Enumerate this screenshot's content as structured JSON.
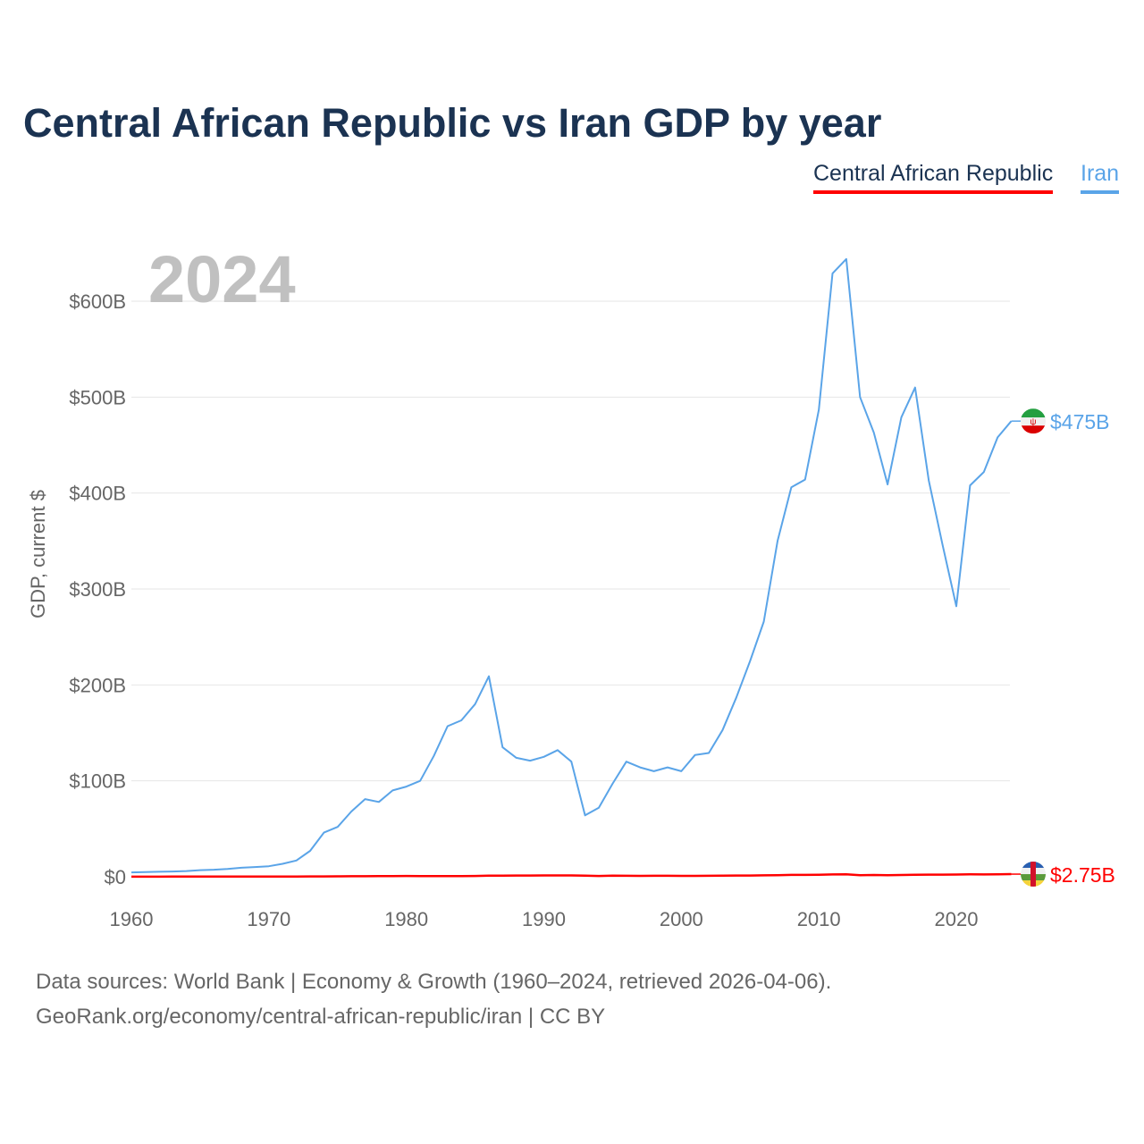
{
  "chart_data": {
    "type": "line",
    "title": "Central African Republic vs Iran GDP by year",
    "ylabel": "GDP, current $",
    "xlabel": "",
    "xlim": [
      1960,
      2024
    ],
    "ylim": [
      0,
      650
    ],
    "yunit": "billions USD",
    "x_ticks": [
      "1960",
      "1970",
      "1980",
      "1990",
      "2000",
      "2010",
      "2020"
    ],
    "y_ticks": [
      {
        "value": 0,
        "label": "$0"
      },
      {
        "value": 100,
        "label": "$100B"
      },
      {
        "value": 200,
        "label": "$200B"
      },
      {
        "value": 300,
        "label": "$300B"
      },
      {
        "value": 400,
        "label": "$400B"
      },
      {
        "value": 500,
        "label": "$500B"
      },
      {
        "value": 600,
        "label": "$600B"
      }
    ],
    "grid": true,
    "legend_position": "top-right",
    "current_year": "2024",
    "start_year": 1960,
    "series": [
      {
        "name": "Central African Republic",
        "color": "#ff0000",
        "end_label": "$2.75B",
        "flag": "central-african-republic",
        "values": [
          0.11,
          0.12,
          0.13,
          0.14,
          0.15,
          0.16,
          0.17,
          0.18,
          0.19,
          0.21,
          0.22,
          0.24,
          0.28,
          0.33,
          0.39,
          0.45,
          0.52,
          0.58,
          0.65,
          0.75,
          0.8,
          0.73,
          0.67,
          0.65,
          0.62,
          0.87,
          1.12,
          1.2,
          1.26,
          1.26,
          1.44,
          1.38,
          1.39,
          1.23,
          0.84,
          1.08,
          1.0,
          0.94,
          1.0,
          1.03,
          0.91,
          0.93,
          0.99,
          1.14,
          1.27,
          1.35,
          1.47,
          1.7,
          1.98,
          1.98,
          2.14,
          2.43,
          2.53,
          1.69,
          1.89,
          1.69,
          1.83,
          2.07,
          2.24,
          2.22,
          2.33,
          2.52,
          2.38,
          2.55,
          2.75
        ]
      },
      {
        "name": "Iran",
        "color": "#5aa4e8",
        "end_label": "$475B",
        "flag": "iran",
        "values": [
          4.6,
          4.8,
          5.2,
          5.5,
          6.0,
          6.9,
          7.4,
          8.2,
          9.4,
          10.2,
          11.0,
          13.5,
          17,
          27,
          46,
          52,
          68,
          81,
          78,
          90,
          94,
          100,
          126,
          157,
          163,
          180,
          209,
          135,
          124,
          121,
          125,
          132,
          120,
          64,
          72,
          97,
          120,
          114,
          110,
          114,
          110,
          127,
          129,
          153,
          187,
          225,
          266,
          350,
          406,
          414,
          487,
          629,
          644,
          500,
          463,
          409,
          479,
          510,
          413,
          346,
          282,
          408,
          422,
          458,
          475
        ]
      }
    ]
  },
  "title": "Central African Republic vs Iran GDP by year",
  "legend": {
    "car": "Central African Republic",
    "iran": "Iran"
  },
  "year_label": "2024",
  "source_line1": "Data sources: World Bank | Economy & Growth (1960–2024, retrieved 2026-04-06).",
  "source_line2": "GeoRank.org/economy/central-african-republic/iran | CC BY"
}
